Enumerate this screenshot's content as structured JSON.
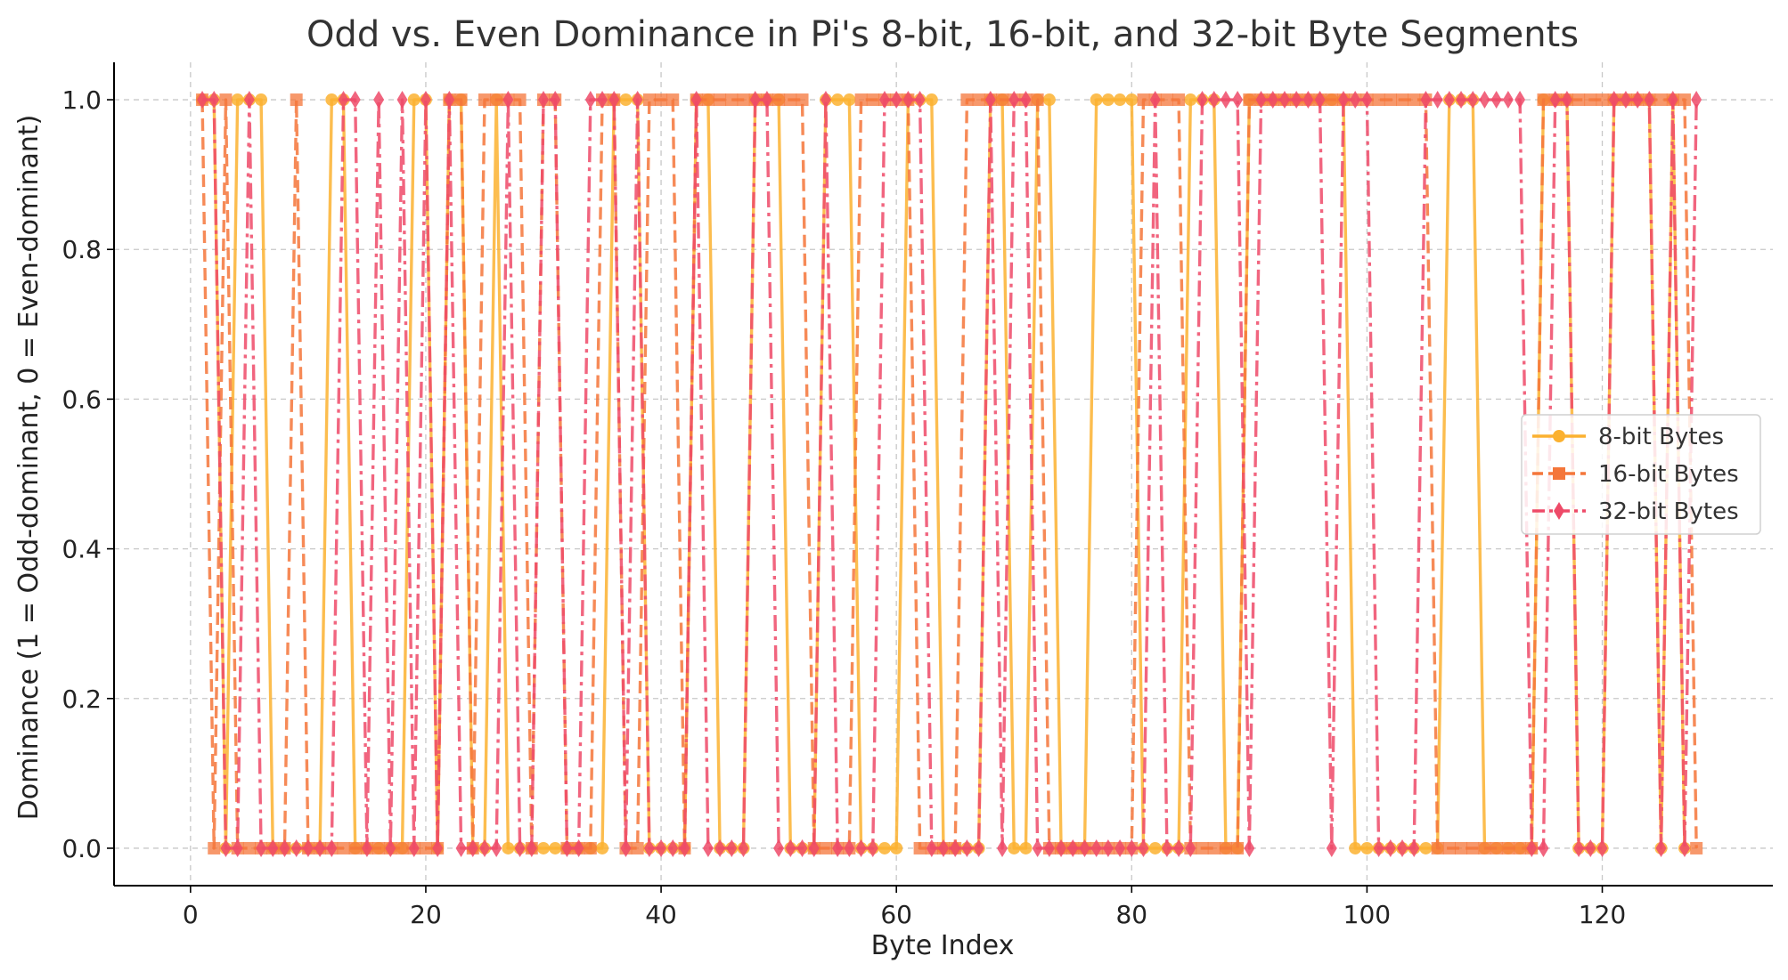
{
  "chart_data": {
    "type": "line",
    "title": "Odd vs. Even Dominance in Pi's 8-bit, 16-bit, and 32-bit Byte Segments",
    "xlabel": "Byte Index",
    "ylabel": "Dominance (1 = Odd-dominant, 0 = Even-dominant)",
    "xlim": [
      -6.5,
      134.5
    ],
    "ylim": [
      -0.05,
      1.05
    ],
    "xticks": [
      0,
      20,
      40,
      60,
      80,
      100,
      120
    ],
    "yticks": [
      0.0,
      0.2,
      0.4,
      0.6,
      0.8,
      1.0
    ],
    "xtick_labels": [
      "0",
      "20",
      "40",
      "60",
      "80",
      "100",
      "120"
    ],
    "ytick_labels": [
      "0.0",
      "0.2",
      "0.4",
      "0.6",
      "0.8",
      "1.0"
    ],
    "grid": true,
    "legend_position": "center-right",
    "series": [
      {
        "name": "8-bit Bytes",
        "color": "#FBB130",
        "linestyle": "solid",
        "marker": "circle",
        "x_start": 1,
        "values": [
          1,
          1,
          0,
          1,
          1,
          1,
          0,
          0,
          0,
          0,
          0,
          1,
          1,
          0,
          0,
          0,
          0,
          0,
          1,
          1,
          0,
          1,
          1,
          0,
          0,
          1,
          0,
          0,
          0,
          0,
          0,
          0,
          0,
          0,
          0,
          1,
          1,
          1,
          0,
          0,
          0,
          0,
          1,
          1,
          0,
          0,
          0,
          1,
          1,
          1,
          0,
          0,
          0,
          1,
          1,
          1,
          0,
          0,
          0,
          0,
          1,
          1,
          1,
          0,
          0,
          0,
          0,
          1,
          1,
          0,
          0,
          1,
          1,
          0,
          0,
          0,
          1,
          1,
          1,
          1,
          0,
          0,
          0,
          0,
          1,
          1,
          1,
          0,
          0,
          1,
          1,
          1,
          1,
          1,
          1,
          1,
          1,
          1,
          0,
          0,
          0,
          0,
          0,
          0,
          0,
          0,
          1,
          1,
          1,
          0,
          0,
          0,
          0,
          0,
          1,
          1,
          1,
          0,
          0,
          0,
          1,
          1,
          1,
          1,
          0,
          1,
          0
        ]
      },
      {
        "name": "16-bit Bytes",
        "color": "#F4763A",
        "linestyle": "dashed",
        "marker": "square",
        "x_start": 1,
        "values": [
          1,
          0,
          1,
          0,
          0,
          0,
          0,
          0,
          1,
          0,
          0,
          0,
          0,
          0,
          0,
          0,
          0,
          0,
          0,
          0,
          0,
          1,
          1,
          0,
          1,
          1,
          1,
          1,
          0,
          1,
          1,
          0,
          0,
          0,
          1,
          1,
          0,
          0,
          1,
          1,
          1,
          0,
          1,
          1,
          1,
          1,
          1,
          1,
          1,
          1,
          1,
          1,
          0,
          0,
          0,
          0,
          1,
          1,
          1,
          1,
          1,
          0,
          0,
          0,
          0,
          1,
          1,
          1,
          1,
          1,
          1,
          1,
          0,
          0,
          0,
          0,
          0,
          0,
          0,
          0,
          1,
          1,
          1,
          1,
          0,
          0,
          0,
          0,
          0,
          1,
          1,
          1,
          1,
          1,
          1,
          1,
          1,
          1,
          1,
          1,
          1,
          1,
          1,
          1,
          1,
          0,
          0,
          0,
          0,
          0,
          0,
          0,
          0,
          0,
          1,
          1,
          1,
          1,
          1,
          1,
          1,
          1,
          1,
          1,
          1,
          1,
          1,
          0
        ]
      },
      {
        "name": "32-bit Bytes",
        "color": "#EE4A68",
        "linestyle": "dashdot",
        "marker": "diamond",
        "x_start": 1,
        "values": [
          1,
          1,
          0,
          0,
          1,
          0,
          0,
          0,
          0,
          0,
          0,
          0,
          1,
          1,
          0,
          1,
          0,
          1,
          0,
          1,
          0,
          1,
          0,
          0,
          0,
          0,
          1,
          0,
          0,
          1,
          1,
          0,
          0,
          1,
          1,
          1,
          0,
          1,
          0,
          0,
          0,
          0,
          1,
          0,
          0,
          0,
          0,
          1,
          1,
          0,
          0,
          0,
          0,
          1,
          0,
          0,
          0,
          0,
          1,
          1,
          1,
          1,
          0,
          0,
          0,
          0,
          0,
          1,
          0,
          1,
          1,
          0,
          0,
          0,
          0,
          0,
          0,
          0,
          0,
          0,
          0,
          1,
          0,
          0,
          0,
          1,
          1,
          1,
          1,
          0,
          1,
          1,
          1,
          1,
          1,
          1,
          0,
          1,
          1,
          1,
          0,
          0,
          0,
          0,
          1,
          1,
          1,
          1,
          1,
          1,
          1,
          1,
          1,
          0,
          0,
          1,
          1,
          0,
          0,
          0,
          1,
          1,
          1,
          1,
          0,
          1,
          0,
          1
        ]
      }
    ]
  }
}
